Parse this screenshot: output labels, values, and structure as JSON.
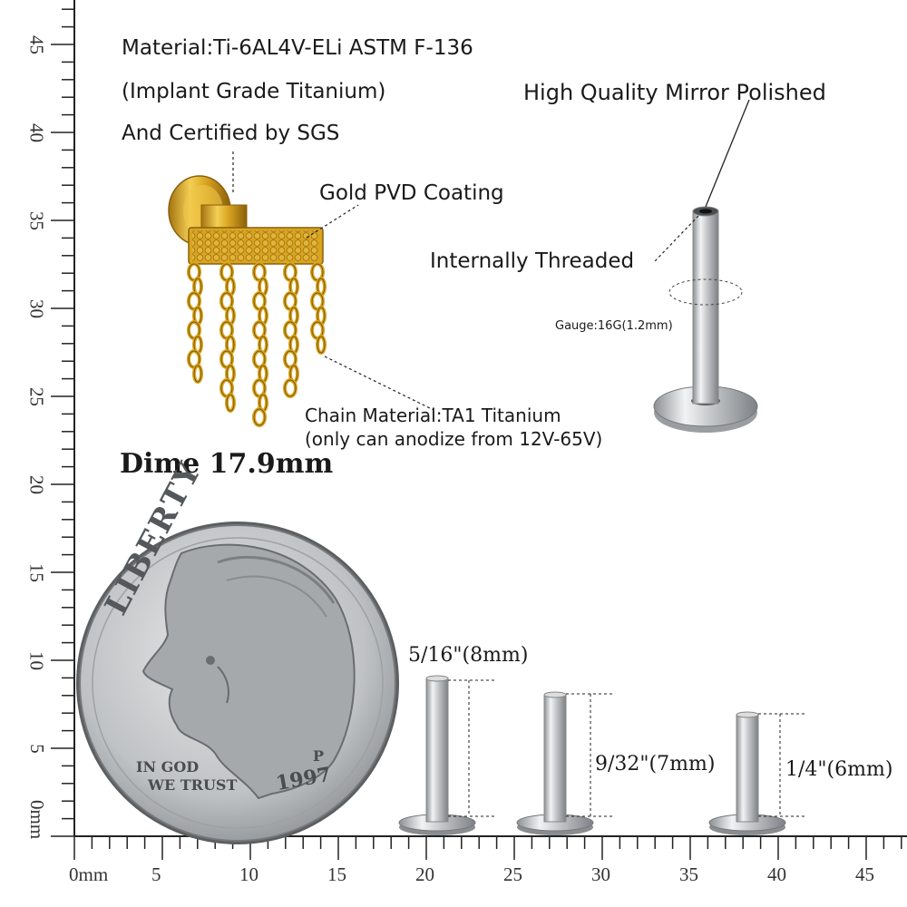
{
  "labels": {
    "material_line1": "Material:Ti-6AL4V-ELi ASTM F-136",
    "material_line2": "(Implant Grade Titanium)",
    "material_line3": "And Certified by SGS",
    "mirror": "High Quality Mirror Polished",
    "gold_pvd": "Gold PVD Coating",
    "threaded": "Internally Threaded",
    "gauge": "Gauge:16G(1.2mm)",
    "chain_line1": "Chain Material:TA1 Titanium",
    "chain_line2": "(only can anodize from 12V-65V)",
    "dime": "Dime 17.9mm",
    "len_8": "5/16\"(8mm)",
    "len_7": "9/32\"(7mm)",
    "len_6": "1/4\"(6mm)"
  },
  "coin": {
    "legend": "LIBERTY",
    "motto_line1": "IN GOD",
    "motto_line2": "WE TRUST",
    "year": "1997",
    "mint_mark": "P"
  },
  "ruler": {
    "unit": "mm",
    "bottom_labels": [
      "0mm",
      "5",
      "10",
      "15",
      "20",
      "25",
      "30",
      "35",
      "40",
      "45"
    ],
    "left_labels": [
      "45",
      "40",
      "35",
      "30",
      "25",
      "20",
      "15",
      "10",
      "5",
      "0mm"
    ]
  },
  "colors": {
    "gold": "#d9a520",
    "steel": "#c8cacc",
    "ruler": "#222222"
  }
}
